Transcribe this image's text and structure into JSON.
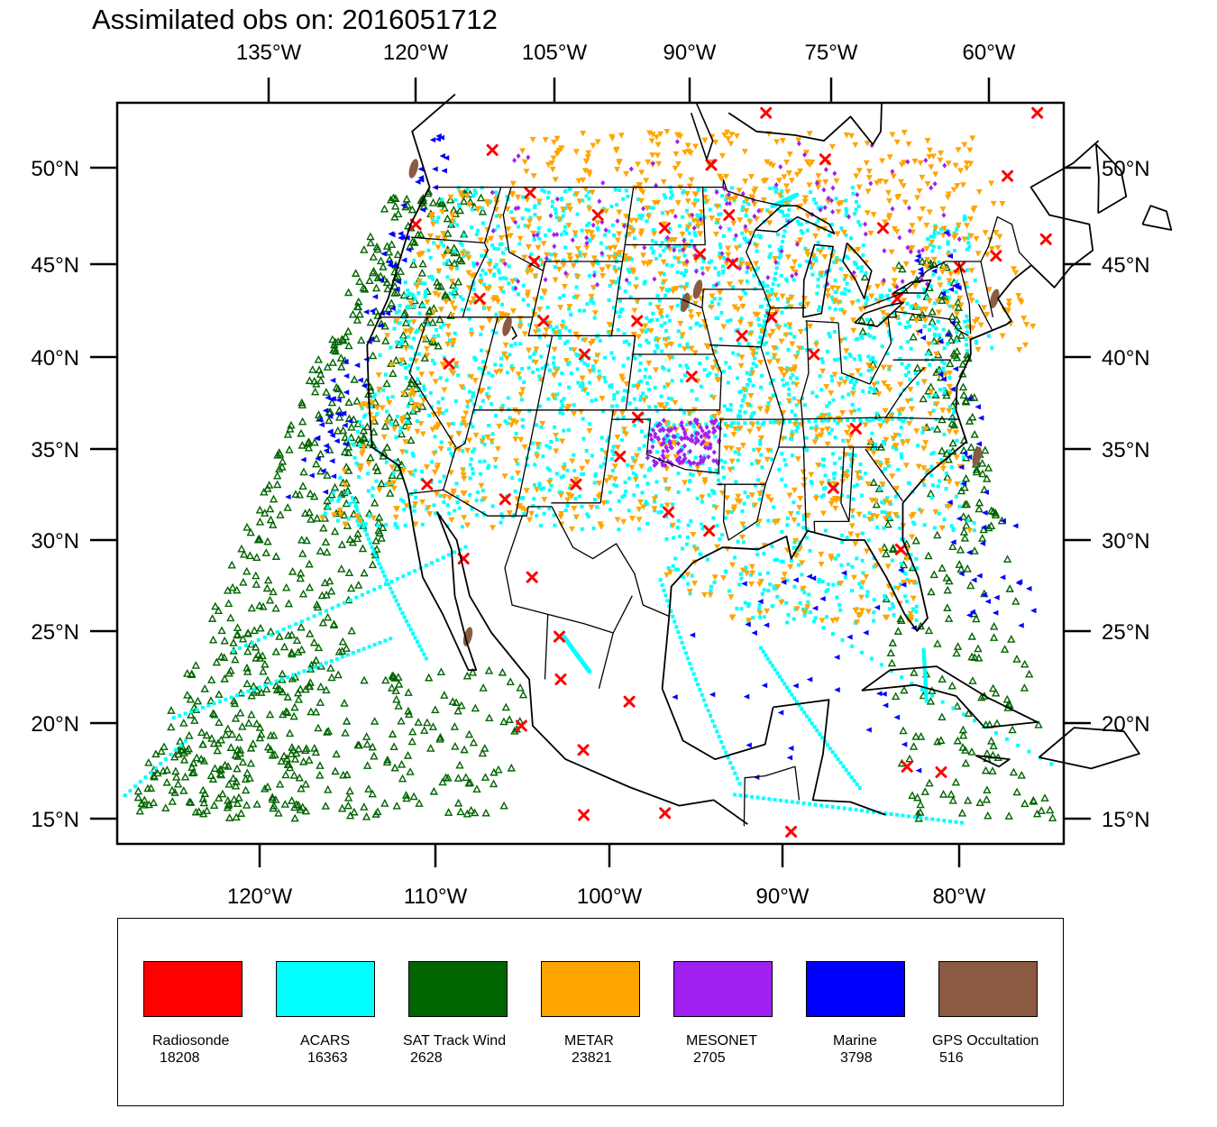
{
  "title": "Assimilated obs on: 2016051712",
  "axes": {
    "top_ticks": [
      "135°W",
      "120°W",
      "105°W",
      "90°W",
      "75°W",
      "60°W"
    ],
    "bottom_ticks": [
      "120°W",
      "110°W",
      "100°W",
      "90°W",
      "80°W"
    ],
    "lat_ticks": [
      "50°N",
      "45°N",
      "40°N",
      "35°N",
      "30°N",
      "25°N",
      "20°N",
      "15°N"
    ],
    "lon_range": [
      -128,
      -74
    ],
    "lat_range": [
      14,
      53.5
    ],
    "projection": "Lambert conformal (top and bottom longitude ticks differ)"
  },
  "legend": [
    {
      "name": "Radiosonde",
      "count": "18208",
      "color": "#ff0000",
      "marker": "x-icon"
    },
    {
      "name": "ACARS",
      "count": "16363",
      "color": "#00ffff",
      "marker": "square-dot-icon"
    },
    {
      "name": "SAT Track Wind",
      "count": "2628",
      "color": "#006400",
      "marker": "triangle-up-outline-icon"
    },
    {
      "name": "METAR",
      "count": "23821",
      "color": "#ffa500",
      "marker": "triangle-down-icon"
    },
    {
      "name": "MESONET",
      "count": "2705",
      "color": "#a020f0",
      "marker": "diamond-icon"
    },
    {
      "name": "Marine",
      "count": "3798",
      "color": "#0000ff",
      "marker": "triangle-left-icon"
    },
    {
      "name": "GPS Occultation",
      "count": "516",
      "color": "#8b5a42",
      "marker": "blob-icon"
    }
  ],
  "map": {
    "coastline_color": "#000000",
    "state_border_color": "#000000",
    "background": "#ffffff"
  }
}
